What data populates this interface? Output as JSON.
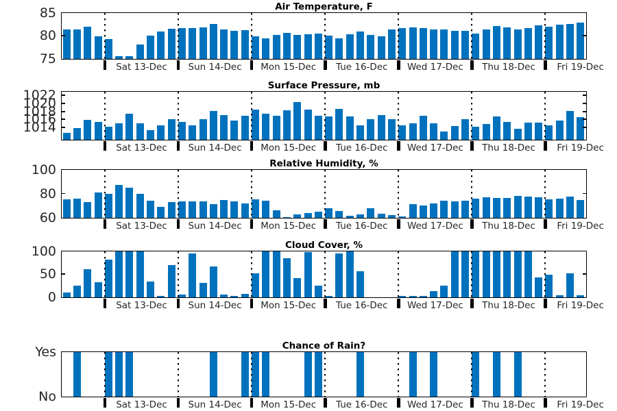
{
  "bar_color": "#0072BD",
  "axis_color": "#000000",
  "text_color": "#262626",
  "chart_data": {
    "type": "bar",
    "x": {
      "day_labels": [
        "Sat 13-Dec",
        "Sun 14-Dec",
        "Mon 15-Dec",
        "Tue 16-Dec",
        "Wed 17-Dec",
        "Thu 18-Dec",
        "Fri 19-Dec"
      ],
      "leading_bars_before_first_day_marker": 4,
      "bars_per_day": 7,
      "total_bars": 50,
      "grid": "dotted vertical line at each day boundary, thick black tick below axis"
    },
    "charts": [
      {
        "id": "air-temperature",
        "type": "bar",
        "title": "Air Temperature, F",
        "y_min": 75,
        "y_max": 85,
        "y_ticks": [
          75,
          80,
          85
        ],
        "y_tick_labels": [
          "75",
          "80",
          "85"
        ],
        "values": [
          81.4,
          81.4,
          82.0,
          79.8,
          79.2,
          75.5,
          75.5,
          78.1,
          80.0,
          80.9,
          81.5,
          81.7,
          81.6,
          81.8,
          82.6,
          81.3,
          81.1,
          81.2,
          79.8,
          79.4,
          80.1,
          80.6,
          80.2,
          80.3,
          80.5,
          80.0,
          79.4,
          80.3,
          80.9,
          80.1,
          79.9,
          81.3,
          81.6,
          81.8,
          81.7,
          81.3,
          81.3,
          81.0,
          81.0,
          80.5,
          81.4,
          82.1,
          81.8,
          81.3,
          81.7,
          82.2,
          81.9,
          82.4,
          82.6,
          82.9
        ]
      },
      {
        "id": "surface-pressure",
        "type": "bar",
        "title": "Surface Pressure, mb",
        "y_min": 1011,
        "y_max": 1023,
        "y_ticks": [
          1014,
          1016,
          1018,
          1020,
          1022
        ],
        "y_tick_labels": [
          "1014",
          "1016",
          "1018",
          "1020",
          "1022"
        ],
        "values": [
          1012.7,
          1013.8,
          1015.9,
          1015.4,
          1014.2,
          1015.1,
          1017.4,
          1015.1,
          1013.3,
          1014.6,
          1016.1,
          1015.4,
          1014.5,
          1016.1,
          1018.1,
          1017.1,
          1015.7,
          1017.0,
          1018.5,
          1017.5,
          1017.0,
          1018.3,
          1020.4,
          1018.4,
          1017.0,
          1016.7,
          1018.6,
          1016.7,
          1014.6,
          1016.0,
          1017.1,
          1016.1,
          1014.5,
          1015.1,
          1017.0,
          1015.0,
          1012.9,
          1014.4,
          1016.0,
          1014.1,
          1014.9,
          1016.8,
          1015.3,
          1013.7,
          1015.2,
          1015.2,
          1014.5,
          1015.7,
          1018.2,
          1016.6
        ]
      },
      {
        "id": "relative-humidity",
        "type": "bar",
        "title": "Relative Humidity, %",
        "y_min": 60,
        "y_max": 100,
        "y_ticks": [
          60,
          80,
          100
        ],
        "y_tick_labels": [
          "60",
          "80",
          "100"
        ],
        "values": [
          75,
          76,
          73,
          81,
          79.5,
          87,
          85,
          79.5,
          74,
          69,
          73,
          73.5,
          73.5,
          73.5,
          71,
          74.5,
          73.5,
          72,
          75,
          74,
          66,
          60.5,
          62.5,
          64,
          65,
          68,
          65.5,
          61.5,
          62.5,
          67.5,
          63,
          62,
          61,
          71,
          70,
          72,
          74,
          73.5,
          74,
          75.5,
          77,
          76.5,
          76.5,
          78,
          77.5,
          77,
          75,
          76,
          77.5,
          74.5
        ]
      },
      {
        "id": "cloud-cover",
        "type": "bar",
        "title": "Cloud Cover, %",
        "y_min": 0,
        "y_max": 100,
        "y_ticks": [
          0,
          50,
          100
        ],
        "y_tick_labels": [
          "0",
          "50",
          "100"
        ],
        "values": [
          10,
          25,
          60,
          32,
          81,
          100,
          100,
          100,
          34,
          3,
          69,
          5,
          95,
          30,
          66,
          5,
          3,
          6,
          52,
          100,
          100,
          84,
          41,
          98,
          25,
          2,
          95,
          100,
          56,
          0,
          0,
          0,
          3,
          3,
          2,
          13,
          24,
          100,
          100,
          100,
          100,
          100,
          100,
          100,
          100,
          43,
          48,
          4,
          51,
          4
        ]
      },
      {
        "id": "chance-of-rain",
        "type": "bar",
        "title": "Chance of Rain?",
        "y_min": 0,
        "y_max": 1,
        "y_ticks": [
          0,
          1
        ],
        "y_tick_labels": [
          "No",
          "Yes"
        ],
        "values": [
          0,
          1,
          0,
          0,
          1,
          1,
          1,
          0,
          0,
          0,
          0,
          0,
          0,
          0,
          1,
          0,
          0,
          1,
          1,
          1,
          0,
          0,
          0,
          1,
          1,
          0,
          0,
          0,
          1,
          0,
          0,
          0,
          0,
          1,
          0,
          1,
          0,
          0,
          0,
          1,
          0,
          1,
          0,
          1,
          0,
          0,
          0,
          0,
          0,
          0
        ]
      }
    ]
  }
}
